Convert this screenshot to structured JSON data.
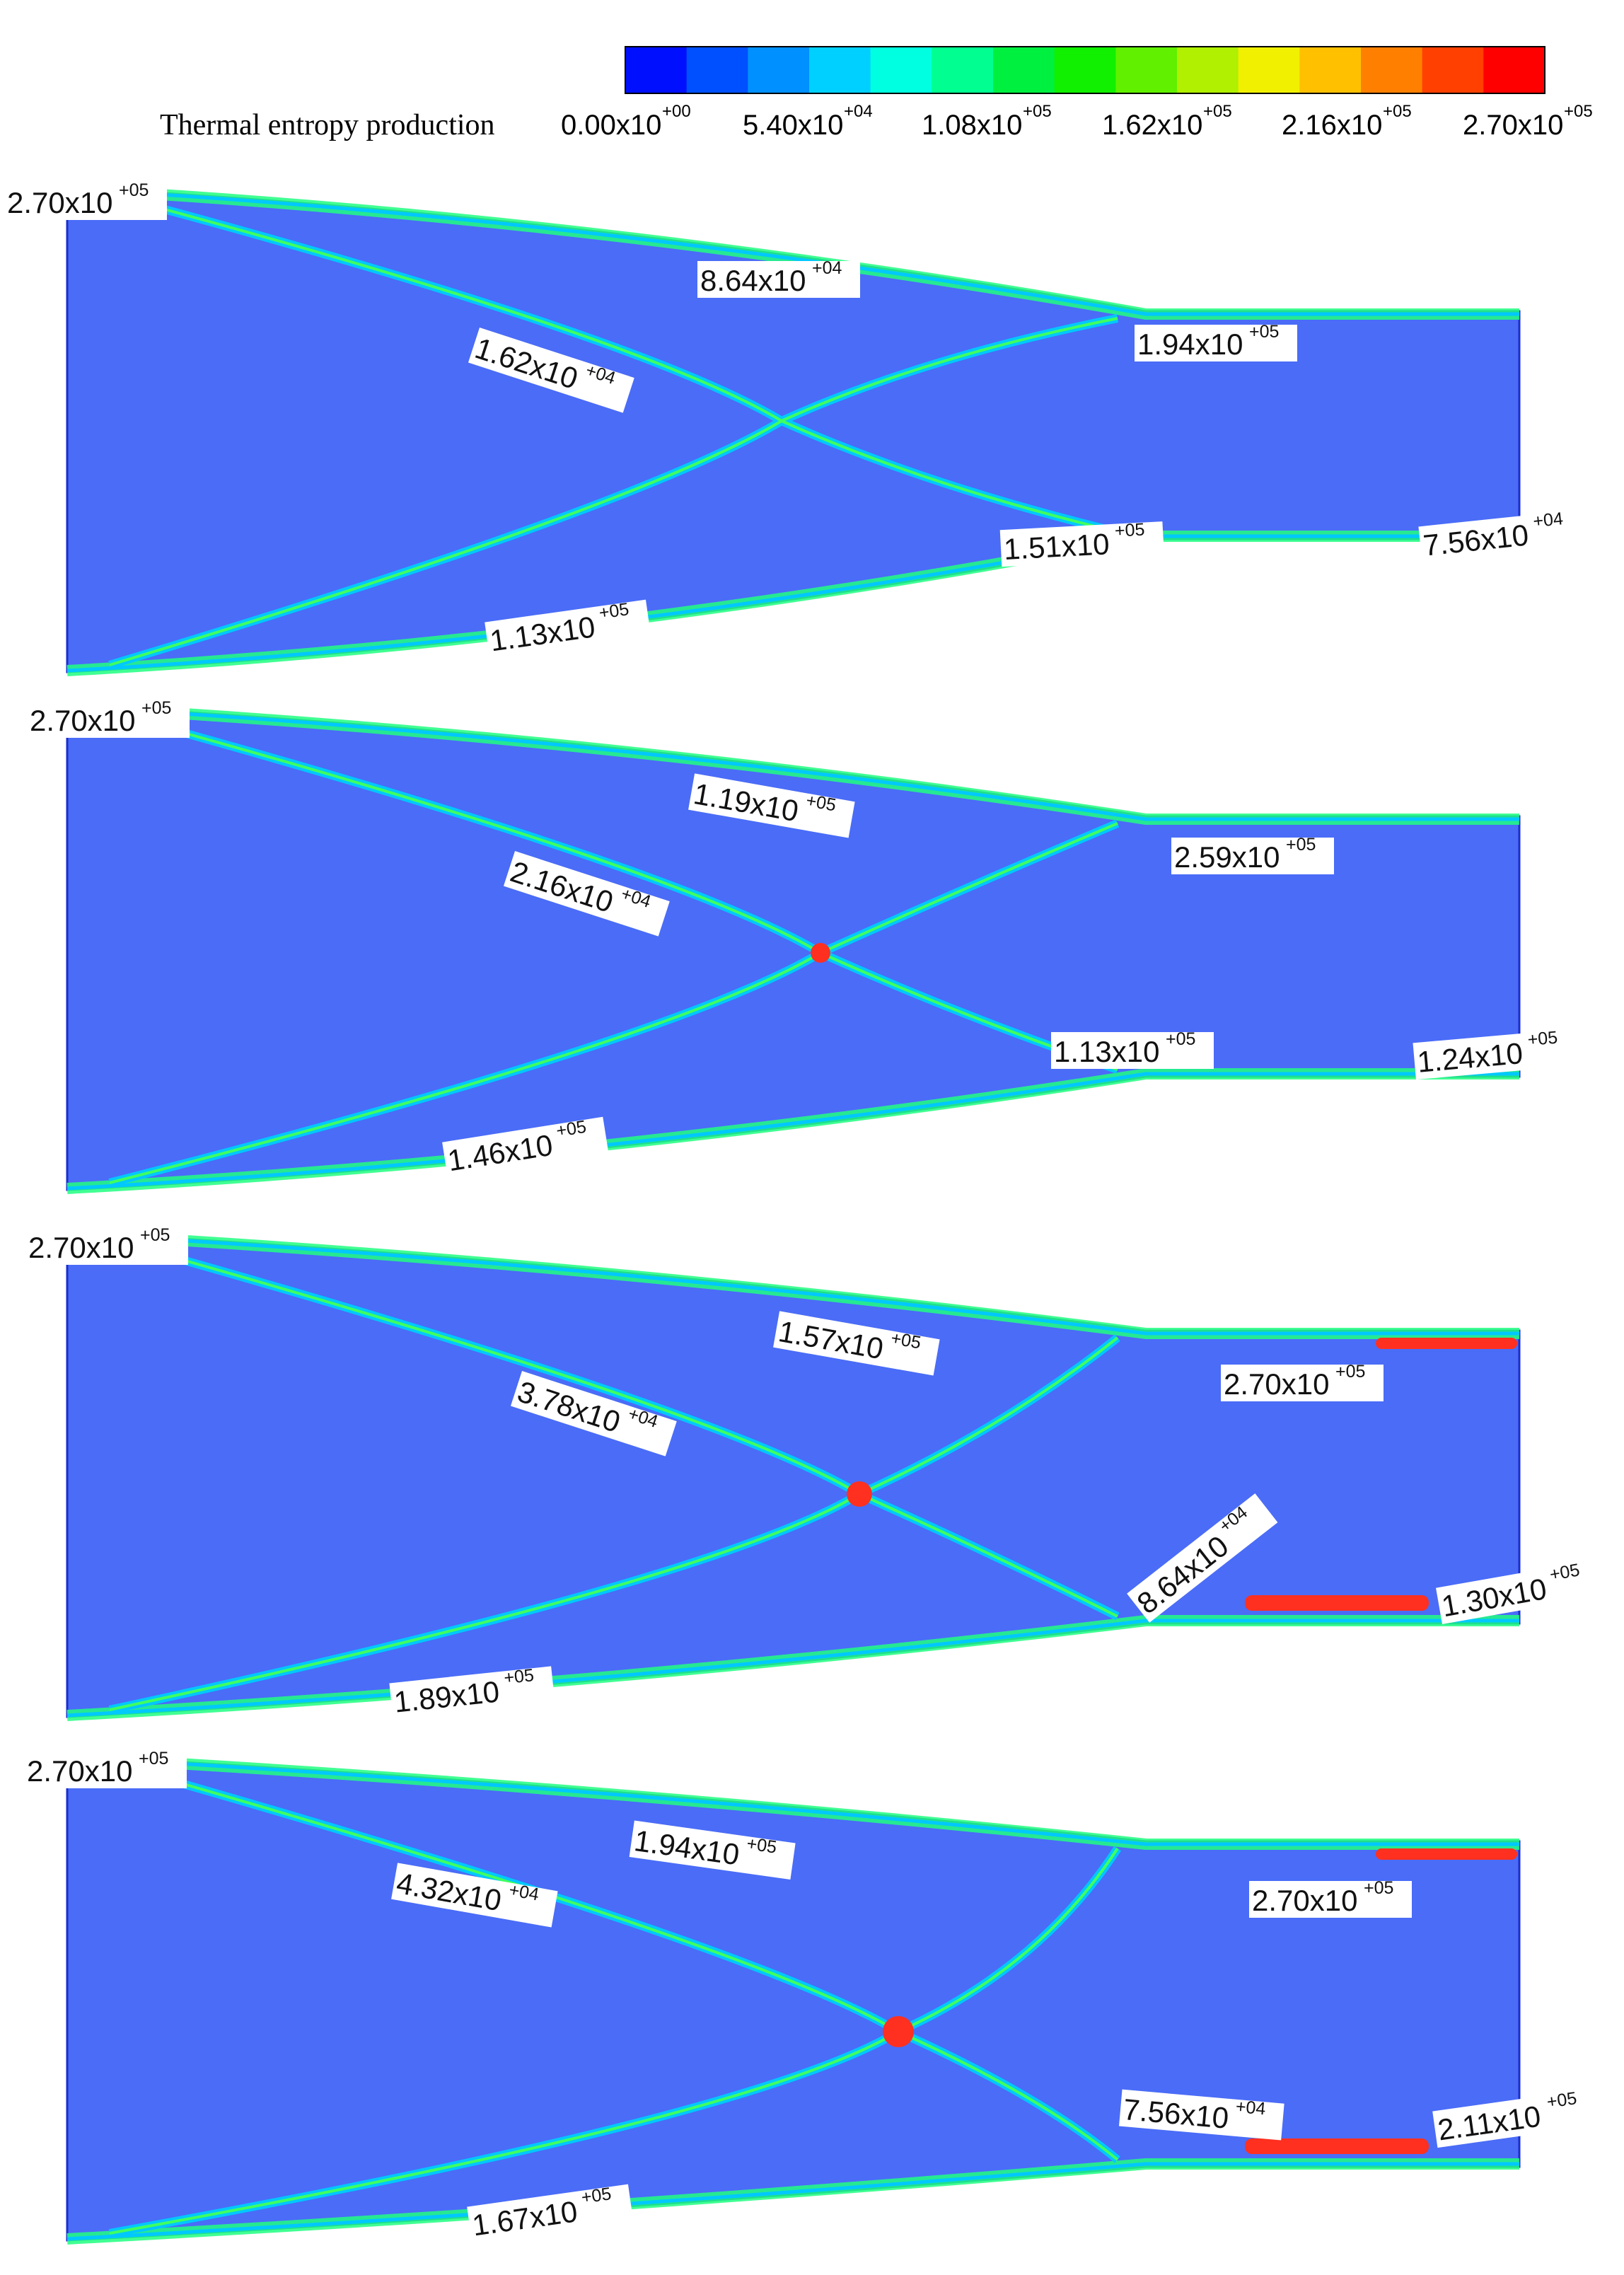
{
  "colorbar": {
    "title": "Thermal entropy production",
    "ticks": [
      {
        "mantissa": "0.00x10",
        "exp": "+00"
      },
      {
        "mantissa": "5.40x10",
        "exp": "+04"
      },
      {
        "mantissa": "1.08x10",
        "exp": "+05"
      },
      {
        "mantissa": "1.62x10",
        "exp": "+05"
      },
      {
        "mantissa": "2.16x10",
        "exp": "+05"
      },
      {
        "mantissa": "2.70x10",
        "exp": "+05"
      }
    ],
    "colors": [
      "#0010ff",
      "#0050ff",
      "#0090ff",
      "#00d0ff",
      "#00ffe0",
      "#00ff90",
      "#00f040",
      "#10f000",
      "#60f000",
      "#b0f000",
      "#f0f000",
      "#ffc000",
      "#ff8000",
      "#ff4000",
      "#ff0000"
    ]
  },
  "field_color": "#4a6cf7",
  "panels": [
    {
      "labels": [
        {
          "mantissa": "2.70x10",
          "exp": "+05"
        },
        {
          "mantissa": "8.64x10",
          "exp": "+04"
        },
        {
          "mantissa": "1.62x10",
          "exp": "+04"
        },
        {
          "mantissa": "1.94x10",
          "exp": "+05"
        },
        {
          "mantissa": "1.51x10",
          "exp": "+05"
        },
        {
          "mantissa": "7.56x10",
          "exp": "+04"
        },
        {
          "mantissa": "1.13x10",
          "exp": "+05"
        }
      ]
    },
    {
      "labels": [
        {
          "mantissa": "2.70x10",
          "exp": "+05"
        },
        {
          "mantissa": "1.19x10",
          "exp": "+05"
        },
        {
          "mantissa": "2.16x10",
          "exp": "+04"
        },
        {
          "mantissa": "2.59x10",
          "exp": "+05"
        },
        {
          "mantissa": "1.13x10",
          "exp": "+05"
        },
        {
          "mantissa": "1.24x10",
          "exp": "+05"
        },
        {
          "mantissa": "1.46x10",
          "exp": "+05"
        }
      ]
    },
    {
      "labels": [
        {
          "mantissa": "2.70x10",
          "exp": "+05"
        },
        {
          "mantissa": "1.57x10",
          "exp": "+05"
        },
        {
          "mantissa": "3.78x10",
          "exp": "+04"
        },
        {
          "mantissa": "2.70x10",
          "exp": "+05"
        },
        {
          "mantissa": "8.64x10",
          "exp": "+04"
        },
        {
          "mantissa": "1.30x10",
          "exp": "+05"
        },
        {
          "mantissa": "1.89x10",
          "exp": "+05"
        }
      ]
    },
    {
      "labels": [
        {
          "mantissa": "2.70x10",
          "exp": "+05"
        },
        {
          "mantissa": "1.94x10",
          "exp": "+05"
        },
        {
          "mantissa": "4.32x10",
          "exp": "+04"
        },
        {
          "mantissa": "2.70x10",
          "exp": "+05"
        },
        {
          "mantissa": "7.56x10",
          "exp": "+04"
        },
        {
          "mantissa": "2.11x10",
          "exp": "+05"
        },
        {
          "mantissa": "1.67x10",
          "exp": "+05"
        }
      ]
    }
  ]
}
